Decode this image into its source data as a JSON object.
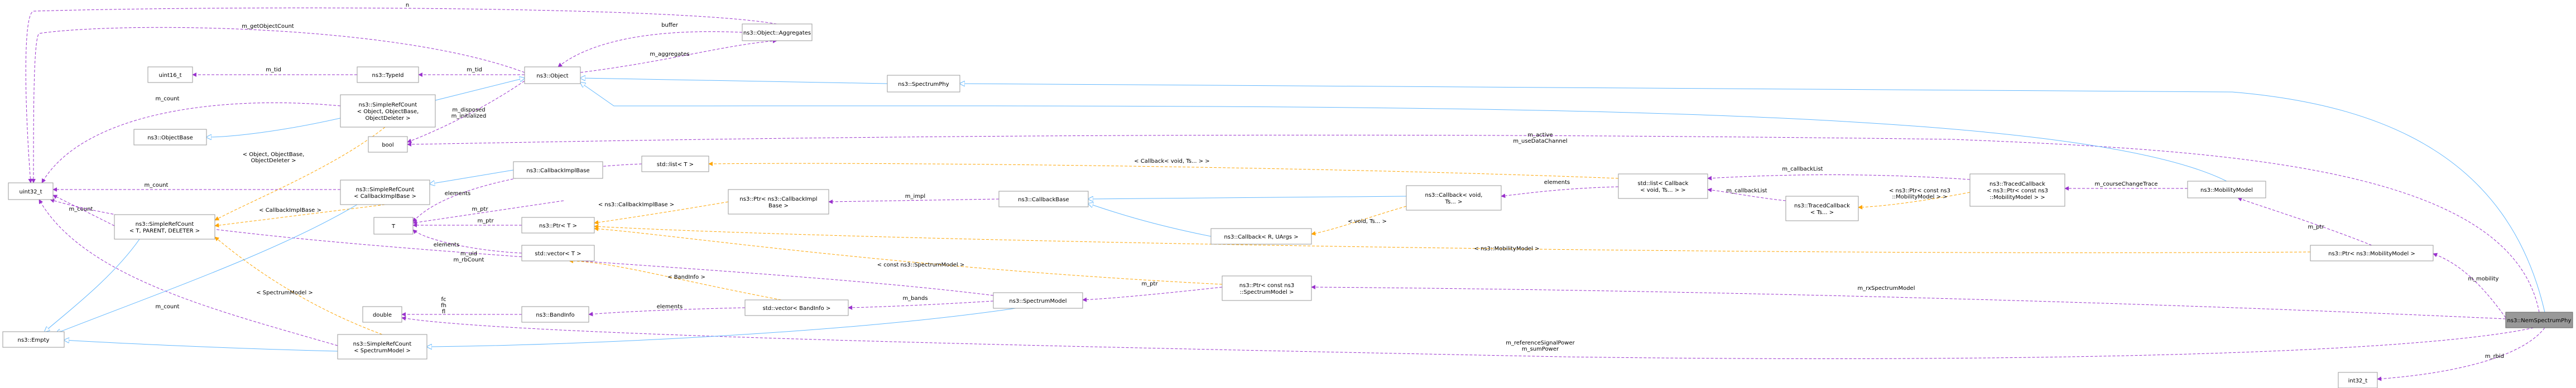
{
  "nodes": [
    {
      "id": "aggregates",
      "lines": [
        "ns3::Object::Aggregates"
      ]
    },
    {
      "id": "object",
      "lines": [
        "ns3::Object"
      ]
    },
    {
      "id": "spectrumphy",
      "lines": [
        "ns3::SpectrumPhy"
      ]
    },
    {
      "id": "uint16",
      "lines": [
        "uint16_t"
      ]
    },
    {
      "id": "typeid",
      "lines": [
        "ns3::TypeId"
      ]
    },
    {
      "id": "srcObj",
      "lines": [
        "ns3::SimpleRefCount",
        "< Object, ObjectBase,",
        "ObjectDeleter >"
      ]
    },
    {
      "id": "objectbase",
      "lines": [
        "ns3::ObjectBase"
      ]
    },
    {
      "id": "bool",
      "lines": [
        "bool"
      ]
    },
    {
      "id": "uint32",
      "lines": [
        "uint32_t"
      ]
    },
    {
      "id": "srcCb",
      "lines": [
        "ns3::SimpleRefCount",
        "< CallbackImplBase >"
      ]
    },
    {
      "id": "srcT",
      "lines": [
        "ns3::SimpleRefCount",
        "< T, PARENT, DELETER >"
      ]
    },
    {
      "id": "cbimplbase",
      "lines": [
        "ns3::CallbackImplBase"
      ]
    },
    {
      "id": "T",
      "lines": [
        "T"
      ]
    },
    {
      "id": "stdlist",
      "lines": [
        "std::list< T >"
      ]
    },
    {
      "id": "ptrT",
      "lines": [
        "ns3::Ptr< T >"
      ]
    },
    {
      "id": "ptrCbImpl",
      "lines": [
        "ns3::Ptr< ns3::CallbackImpl",
        "Base >"
      ]
    },
    {
      "id": "stdvecT",
      "lines": [
        "std::vector< T >"
      ]
    },
    {
      "id": "empty",
      "lines": [
        "ns3::Empty"
      ]
    },
    {
      "id": "double",
      "lines": [
        "double"
      ]
    },
    {
      "id": "bandinfo",
      "lines": [
        "ns3::BandInfo"
      ]
    },
    {
      "id": "vecband",
      "lines": [
        "std::vector< BandInfo >"
      ]
    },
    {
      "id": "srcSm",
      "lines": [
        "ns3::SimpleRefCount",
        "< SpectrumModel >"
      ]
    },
    {
      "id": "spectrummodel",
      "lines": [
        "ns3::SpectrumModel"
      ]
    },
    {
      "id": "cbbase",
      "lines": [
        "ns3::CallbackBase"
      ]
    },
    {
      "id": "cbRArgs",
      "lines": [
        "ns3::Callback< R, UArgs >"
      ]
    },
    {
      "id": "cbVoid",
      "lines": [
        "ns3::Callback< void,",
        "Ts... >"
      ]
    },
    {
      "id": "ptrConstSm",
      "lines": [
        "ns3::Ptr< const ns3",
        "::SpectrumModel >"
      ]
    },
    {
      "id": "listCb",
      "lines": [
        "std::list< Callback",
        "< void, Ts... > >"
      ]
    },
    {
      "id": "tracedCbTs",
      "lines": [
        "ns3::TracedCallback",
        "< Ts... >"
      ]
    },
    {
      "id": "tracedCbMm",
      "lines": [
        "ns3::TracedCallback",
        "< ns3::Ptr< const ns3",
        "::MobilityModel > >"
      ]
    },
    {
      "id": "mobility",
      "lines": [
        "ns3::MobilityModel"
      ]
    },
    {
      "id": "ptrMm",
      "lines": [
        "ns3::Ptr< ns3::MobilityModel >"
      ]
    },
    {
      "id": "int32",
      "lines": [
        "int32_t"
      ]
    },
    {
      "id": "nr",
      "lines": [
        "ns3::NemSpectrumPhy"
      ]
    }
  ],
  "edges": [
    {
      "id": "n",
      "kind": "member",
      "lines": [
        "n"
      ]
    },
    {
      "id": "m_getObjectCount",
      "kind": "member",
      "lines": [
        "m_getObjectCount"
      ]
    },
    {
      "id": "buffer",
      "kind": "member",
      "lines": [
        "buffer"
      ]
    },
    {
      "id": "m_aggregates",
      "kind": "member",
      "lines": [
        "m_aggregates"
      ]
    },
    {
      "id": "m_tid",
      "kind": "member",
      "lines": [
        "m_tid"
      ]
    },
    {
      "id": "m_tid2",
      "kind": "member",
      "lines": [
        "m_tid"
      ]
    },
    {
      "id": "m_count1",
      "kind": "member",
      "lines": [
        "m_count"
      ]
    },
    {
      "id": "m_disposed",
      "kind": "member",
      "lines": [
        "m_disposed",
        "m_initialized"
      ]
    },
    {
      "id": "objTpl",
      "kind": "template",
      "lines": [
        "< Object, ObjectBase,",
        "ObjectDeleter >"
      ]
    },
    {
      "id": "m_active",
      "kind": "member",
      "lines": [
        "m_active",
        "m_useDataChannel"
      ]
    },
    {
      "id": "m_count2",
      "kind": "member",
      "lines": [
        "m_count"
      ]
    },
    {
      "id": "m_count3",
      "kind": "member",
      "lines": [
        "m_count"
      ]
    },
    {
      "id": "cbTpl",
      "kind": "template",
      "lines": [
        "< CallbackImplBase >"
      ]
    },
    {
      "id": "m_ptr1",
      "kind": "member",
      "lines": [
        "m_ptr"
      ]
    },
    {
      "id": "elements1",
      "kind": "member",
      "lines": [
        "elements"
      ]
    },
    {
      "id": "m_ptr2",
      "kind": "member",
      "lines": [
        "m_ptr"
      ]
    },
    {
      "id": "elements2",
      "kind": "member",
      "lines": [
        "elements"
      ]
    },
    {
      "id": "cbListTpl",
      "kind": "template",
      "lines": [
        "< Callback< void, Ts... > >"
      ]
    },
    {
      "id": "cbImplTpl",
      "kind": "template",
      "lines": [
        "< ns3::CallbackImplBase >"
      ]
    },
    {
      "id": "m_uid",
      "kind": "member",
      "lines": [
        "m_uid",
        "m_rbCount"
      ]
    },
    {
      "id": "m_impl",
      "kind": "member",
      "lines": [
        "m_impl"
      ]
    },
    {
      "id": "elements3",
      "kind": "member",
      "lines": [
        "elements"
      ]
    },
    {
      "id": "voidTsTpl",
      "kind": "template",
      "lines": [
        "< void, Ts... >"
      ]
    },
    {
      "id": "m_callbackList1",
      "kind": "member",
      "lines": [
        "m_callbackList"
      ]
    },
    {
      "id": "m_callbackList2",
      "kind": "member",
      "lines": [
        "m_callbackList"
      ]
    },
    {
      "id": "constMmTpl",
      "kind": "template",
      "lines": [
        "< ns3::Ptr< const ns3",
        "::MobilityModel > >"
      ]
    },
    {
      "id": "m_courseChangeTrace",
      "kind": "member",
      "lines": [
        "m_courseChangeTrace"
      ]
    },
    {
      "id": "m_ptr3",
      "kind": "member",
      "lines": [
        "m_ptr"
      ]
    },
    {
      "id": "mmTpl",
      "kind": "template",
      "lines": [
        "< ns3::MobilityModel >"
      ]
    },
    {
      "id": "m_mobility",
      "kind": "member",
      "lines": [
        "m_mobility"
      ]
    },
    {
      "id": "bandInfoTpl",
      "kind": "template",
      "lines": [
        "< BandInfo >"
      ]
    },
    {
      "id": "fc",
      "kind": "member",
      "lines": [
        "fc",
        "fh",
        "fl"
      ]
    },
    {
      "id": "elements4",
      "kind": "member",
      "lines": [
        "elements"
      ]
    },
    {
      "id": "m_bands",
      "kind": "member",
      "lines": [
        "m_bands"
      ]
    },
    {
      "id": "constSmTpl",
      "kind": "template",
      "lines": [
        "< const ns3::SpectrumModel >"
      ]
    },
    {
      "id": "m_ptr4",
      "kind": "member",
      "lines": [
        "m_ptr"
      ]
    },
    {
      "id": "m_rxSpectrumModel",
      "kind": "member",
      "lines": [
        "m_rxSpectrumModel"
      ]
    },
    {
      "id": "smTpl",
      "kind": "template",
      "lines": [
        "< SpectrumModel >"
      ]
    },
    {
      "id": "m_count4",
      "kind": "member",
      "lines": [
        "m_count"
      ]
    },
    {
      "id": "m_refSignal",
      "kind": "member",
      "lines": [
        "m_referenceSignalPower",
        "m_sumPower"
      ]
    },
    {
      "id": "m_rbid",
      "kind": "member",
      "lines": [
        "m_rbid"
      ]
    }
  ],
  "colors": {
    "inheritance": "#63b8ff",
    "member": "#9a32cd",
    "template": "#ffa500",
    "node_border": "#999999",
    "focus_fill": "#999999"
  }
}
